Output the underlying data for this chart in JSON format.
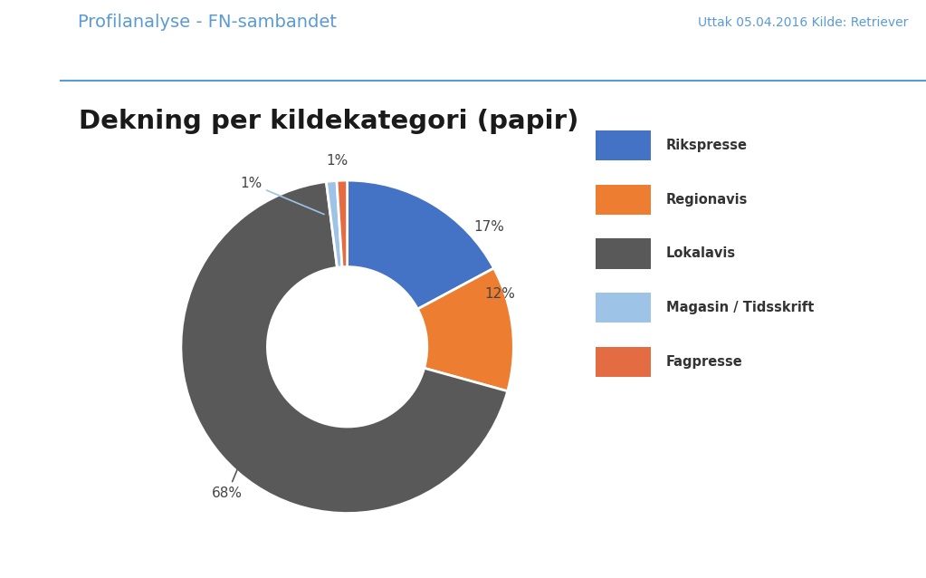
{
  "title": "Dekning per kildekategori (papir)",
  "header_left": "Profilanalyse - FN-sambandet",
  "header_right": "Uttak 05.04.2016 Kilde: Retriever",
  "slices": [
    17,
    12,
    68,
    1,
    1
  ],
  "labels": [
    "17%",
    "12%",
    "68%",
    "1%",
    "1%"
  ],
  "legend_labels": [
    "Rikspresse",
    "Regionavis",
    "Lokalavis",
    "Magasin / Tidsskrift",
    "Fagpresse"
  ],
  "colors": [
    "#4472C4",
    "#ED7D31",
    "#595959",
    "#9DC3E6",
    "#E36C42"
  ],
  "background_color": "#FFFFFF",
  "sidebar_color": "#5B9BD5",
  "header_color": "#5B9BD5",
  "line_color": "#5B9BD5"
}
